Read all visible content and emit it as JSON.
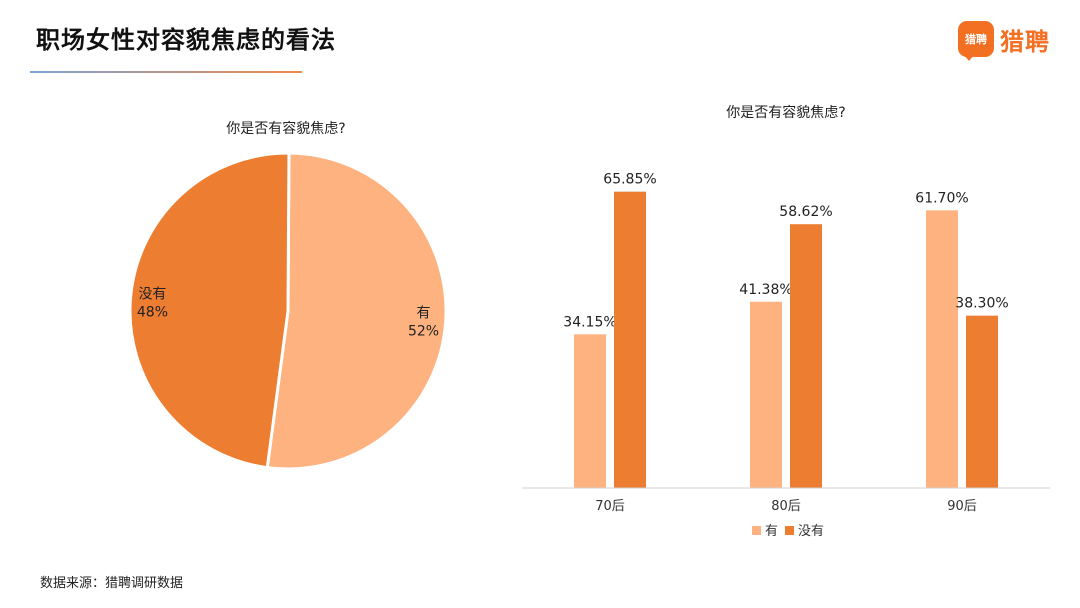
{
  "header": {
    "title": "职场女性对容貌焦虑的看法",
    "logo_badge": "猎聘",
    "logo_text": "猎聘"
  },
  "footer": {
    "source": "数据来源：猎聘调研数据"
  },
  "colors": {
    "light": "#FDB27F",
    "dark": "#ED7D31"
  },
  "chart_data": [
    {
      "type": "pie",
      "title": "你是否有容貌焦虑?",
      "slices": [
        {
          "label": "有",
          "value": 52,
          "value_label": "52%",
          "color": "#FDB27F"
        },
        {
          "label": "没有",
          "value": 48,
          "value_label": "48%",
          "color": "#ED7D31"
        }
      ]
    },
    {
      "type": "bar",
      "title": "你是否有容貌焦虑?",
      "categories": [
        "70后",
        "80后",
        "90后"
      ],
      "series": [
        {
          "name": "有",
          "values": [
            34.15,
            41.38,
            61.7
          ],
          "labels": [
            "34.15%",
            "41.38%",
            "61.70%"
          ],
          "color": "#FDB27F"
        },
        {
          "name": "没有",
          "values": [
            65.85,
            58.62,
            38.3
          ],
          "labels": [
            "65.85%",
            "58.62%",
            "38.30%"
          ],
          "color": "#ED7D31"
        }
      ],
      "ylim": [
        0,
        80
      ],
      "legend": "bottom",
      "grid": false
    }
  ]
}
